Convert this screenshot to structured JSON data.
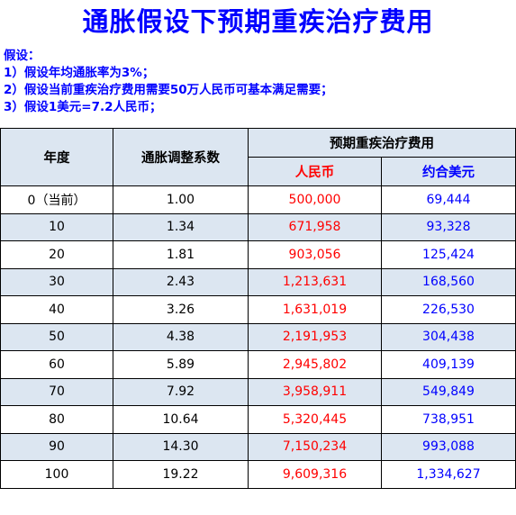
{
  "title": "通胀假设下预期重疾治疗费用",
  "assumptions": {
    "heading": "假设：",
    "items": [
      "1）假设年均通胀率为3%；",
      "2）假设当前重疾治疗费用需要50万人民币可基本满足需要；",
      "3）假设1美元=7.2人民币；"
    ]
  },
  "table": {
    "headers": {
      "year": "年度",
      "coef": "通胀调整系数",
      "expected": "预期重疾治疗费用",
      "rmb": "人民币",
      "usd": "约合美元"
    },
    "rows": [
      {
        "year": "0（当前）",
        "coef": "1.00",
        "rmb": "500,000",
        "usd": "69,444"
      },
      {
        "year": "10",
        "coef": "1.34",
        "rmb": "671,958",
        "usd": "93,328"
      },
      {
        "year": "20",
        "coef": "1.81",
        "rmb": "903,056",
        "usd": "125,424"
      },
      {
        "year": "30",
        "coef": "2.43",
        "rmb": "1,213,631",
        "usd": "168,560"
      },
      {
        "year": "40",
        "coef": "3.26",
        "rmb": "1,631,019",
        "usd": "226,530"
      },
      {
        "year": "50",
        "coef": "4.38",
        "rmb": "2,191,953",
        "usd": "304,438"
      },
      {
        "year": "60",
        "coef": "5.89",
        "rmb": "2,945,802",
        "usd": "409,139"
      },
      {
        "year": "70",
        "coef": "7.92",
        "rmb": "3,958,911",
        "usd": "549,849"
      },
      {
        "year": "80",
        "coef": "10.64",
        "rmb": "5,320,445",
        "usd": "738,951"
      },
      {
        "year": "90",
        "coef": "14.30",
        "rmb": "7,150,234",
        "usd": "993,088"
      },
      {
        "year": "100",
        "coef": "19.22",
        "rmb": "9,609,316",
        "usd": "1,334,627"
      }
    ]
  },
  "colors": {
    "title": "#0000ff",
    "header_bg": "#dce6f1",
    "rmb": "#ff0000",
    "usd": "#0000ff"
  }
}
